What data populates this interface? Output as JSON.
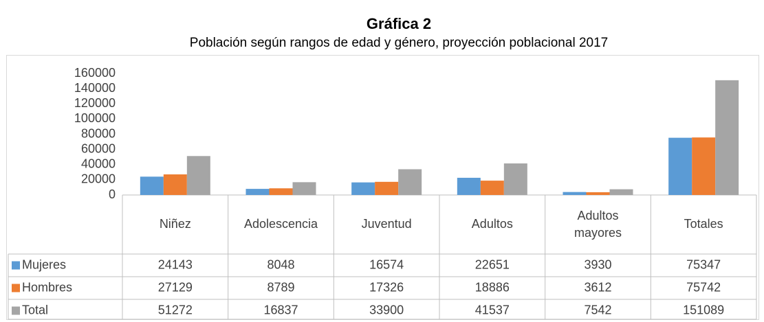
{
  "chart_data": {
    "type": "bar",
    "title": "Gráfica 2",
    "subtitle": "Población según rangos de edad y género, proyección poblacional 2017",
    "categories": [
      "Niñez",
      "Adolescencia",
      "Juventud",
      "Adultos",
      "Adultos mayores",
      "Totales"
    ],
    "series": [
      {
        "name": "Mujeres",
        "color": "#5b9bd5",
        "values": [
          24143,
          8048,
          16574,
          22651,
          3930,
          75347
        ]
      },
      {
        "name": "Hombres",
        "color": "#ed7d31",
        "values": [
          27129,
          8789,
          17326,
          18886,
          3612,
          75742
        ]
      },
      {
        "name": "Total",
        "color": "#a5a5a5",
        "values": [
          51272,
          16837,
          33900,
          41537,
          7542,
          151089
        ]
      }
    ],
    "ylim": [
      0,
      160000
    ],
    "yticks": [
      0,
      20000,
      40000,
      60000,
      80000,
      100000,
      120000,
      140000,
      160000
    ],
    "grid": false
  }
}
